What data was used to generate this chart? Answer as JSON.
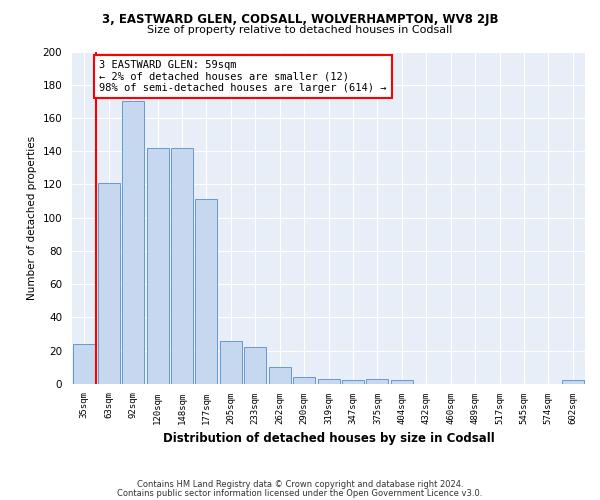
{
  "title": "3, EASTWARD GLEN, CODSALL, WOLVERHAMPTON, WV8 2JB",
  "subtitle": "Size of property relative to detached houses in Codsall",
  "xlabel": "Distribution of detached houses by size in Codsall",
  "ylabel": "Number of detached properties",
  "bin_labels": [
    "35sqm",
    "63sqm",
    "92sqm",
    "120sqm",
    "148sqm",
    "177sqm",
    "205sqm",
    "233sqm",
    "262sqm",
    "290sqm",
    "319sqm",
    "347sqm",
    "375sqm",
    "404sqm",
    "432sqm",
    "460sqm",
    "489sqm",
    "517sqm",
    "545sqm",
    "574sqm",
    "602sqm"
  ],
  "bar_values": [
    24,
    121,
    170,
    142,
    142,
    111,
    26,
    22,
    10,
    4,
    3,
    2,
    3,
    2,
    0,
    0,
    0,
    0,
    0,
    0,
    2
  ],
  "bar_color": "#c5d8f0",
  "bar_edge_color": "#6699cc",
  "annotation_text": "3 EASTWARD GLEN: 59sqm\n← 2% of detached houses are smaller (12)\n98% of semi-detached houses are larger (614) →",
  "annotation_box_color": "white",
  "annotation_box_edge_color": "red",
  "vline_color": "red",
  "ylim": [
    0,
    200
  ],
  "yticks": [
    0,
    20,
    40,
    60,
    80,
    100,
    120,
    140,
    160,
    180,
    200
  ],
  "footer_line1": "Contains HM Land Registry data © Crown copyright and database right 2024.",
  "footer_line2": "Contains public sector information licensed under the Open Government Licence v3.0.",
  "background_color": "#ffffff",
  "plot_bg_color": "#e8eef7",
  "grid_color": "#ffffff"
}
